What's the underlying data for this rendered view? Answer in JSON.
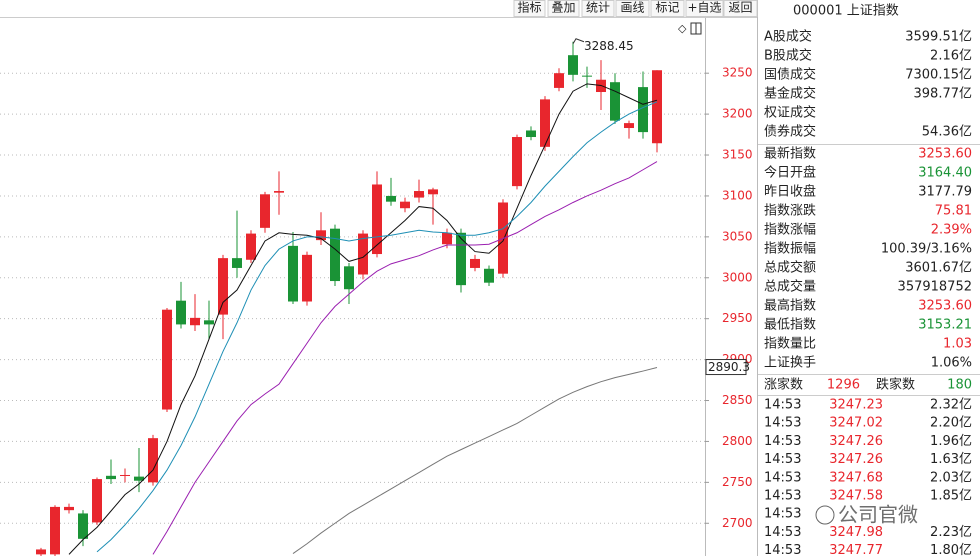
{
  "toolbar": [
    "指标",
    "叠加",
    "统计",
    "画线",
    "标记",
    "+自选",
    "返回"
  ],
  "chart_data": {
    "type": "candlestick",
    "up_color": "#e8262d",
    "down_color": "#1a9336",
    "open": [
      2662,
      2662,
      2716,
      2712,
      2701,
      2758,
      2758,
      2757,
      2750,
      2839,
      2972,
      2942,
      2948,
      2955,
      3024,
      3022,
      3061,
      3104,
      3039,
      2971,
      3046,
      3060,
      3014,
      3004,
      3029,
      3100,
      3085,
      3098,
      3102,
      3041,
      3055,
      3012,
      3011,
      3005,
      3112,
      3180,
      3160,
      3232,
      3272,
      3247,
      3227,
      3239,
      3183,
      3233,
      3164.4
    ],
    "high": [
      2670,
      2722,
      2724,
      2716,
      2756,
      2778,
      2767,
      2792,
      2808,
      2963,
      2995,
      2980,
      2972,
      3028,
      3082,
      3058,
      3105,
      3130,
      3056,
      3032,
      3080,
      3065,
      3018,
      3058,
      3130,
      3122,
      3098,
      3120,
      3110,
      3060,
      3060,
      3028,
      3015,
      3096,
      3175,
      3185,
      3222,
      3256,
      3288.45,
      3258,
      3266,
      3250,
      3192,
      3252,
      3253.6
    ],
    "low": [
      2660,
      2660,
      2712,
      2672,
      2698,
      2748,
      2750,
      2738,
      2746,
      2836,
      2938,
      2935,
      2925,
      2925,
      3000,
      3018,
      3055,
      3077,
      2968,
      2966,
      3040,
      2990,
      2968,
      2998,
      3025,
      3088,
      3080,
      3092,
      3065,
      3036,
      2982,
      3008,
      2990,
      3000,
      3108,
      3168,
      3155,
      3228,
      3240,
      3232,
      3205,
      3188,
      3170,
      3170,
      3153.21
    ],
    "close": [
      2668,
      2720,
      2720,
      2681,
      2754,
      2754,
      2759,
      2752,
      2804,
      2961,
      2943,
      2951,
      2943,
      3024,
      3012,
      3054,
      3102,
      3106,
      2971,
      3028,
      3058,
      2996,
      2986,
      3054,
      3114,
      3093,
      3093,
      3106,
      3108,
      3055,
      2991,
      3023,
      2994,
      3092,
      3172,
      3172,
      3218,
      3250,
      3248,
      3246,
      3242,
      3192,
      3189,
      3178,
      3253.6
    ],
    "lines": [
      {
        "color": "#111111",
        "values": [
          null,
          null,
          2662,
          2680,
          2695,
          2715,
          2735,
          2748,
          2765,
          2800,
          2845,
          2880,
          2925,
          2970,
          2985,
          3015,
          3045,
          3055,
          3053,
          3052,
          3048,
          3035,
          3020,
          3025,
          3040,
          3055,
          3070,
          3087,
          3085,
          3070,
          3048,
          3032,
          3030,
          3045,
          3085,
          3125,
          3162,
          3200,
          3228,
          3237,
          3235,
          3228,
          3220,
          3212,
          3217
        ]
      },
      {
        "color": "#1e8fb5",
        "values": [
          null,
          null,
          null,
          null,
          2665,
          2680,
          2698,
          2718,
          2740,
          2765,
          2795,
          2830,
          2870,
          2910,
          2945,
          2985,
          3015,
          3035,
          3045,
          3050,
          3050,
          3048,
          3045,
          3048,
          3050,
          3052,
          3055,
          3058,
          3056,
          3055,
          3052,
          3052,
          3055,
          3060,
          3075,
          3092,
          3112,
          3130,
          3148,
          3165,
          3178,
          3190,
          3200,
          3208,
          3215
        ]
      },
      {
        "color": "#9a1fb0",
        "values": [
          null,
          null,
          null,
          null,
          null,
          null,
          null,
          null,
          2662,
          2690,
          2720,
          2750,
          2775,
          2800,
          2825,
          2845,
          2858,
          2870,
          2895,
          2920,
          2945,
          2965,
          2980,
          2995,
          3008,
          3017,
          3022,
          3027,
          3034,
          3040,
          3040,
          3040,
          3041,
          3048,
          3055,
          3065,
          3075,
          3083,
          3092,
          3100,
          3107,
          3115,
          3122,
          3132,
          3142
        ]
      },
      {
        "color": "#777777",
        "values": [
          null,
          null,
          null,
          null,
          null,
          null,
          null,
          null,
          null,
          null,
          null,
          null,
          null,
          null,
          null,
          null,
          null,
          null,
          2663,
          2675,
          2688,
          2700,
          2712,
          2722,
          2732,
          2742,
          2752,
          2762,
          2772,
          2782,
          2790,
          2798,
          2806,
          2814,
          2822,
          2832,
          2842,
          2852,
          2860,
          2867,
          2873,
          2878,
          2882,
          2886,
          2890.3
        ]
      }
    ],
    "ylim": [
      2660,
      3315
    ],
    "yticks": [
      2700,
      2750,
      2800,
      2850,
      2900,
      2950,
      3000,
      3050,
      3100,
      3150,
      3200,
      3250
    ],
    "grid": true,
    "annotation": "3288.45",
    "axis_marker": 2890.3
  },
  "quote": {
    "title": "000001 上证指数",
    "rows": [
      {
        "label": "A股成交",
        "value": "3599.51亿",
        "color": "dark"
      },
      {
        "label": "B股成交",
        "value": "2.16亿",
        "color": "dark"
      },
      {
        "label": "国债成交",
        "value": "7300.15亿",
        "color": "dark"
      },
      {
        "label": "基金成交",
        "value": "398.77亿",
        "color": "dark"
      },
      {
        "label": "权证成交"
      },
      {
        "label": "债券成交",
        "value": "54.36亿",
        "color": "dark"
      }
    ],
    "index_rows": [
      {
        "label": "最新指数",
        "value": "3253.60",
        "color": "red"
      },
      {
        "label": "今日开盘",
        "value": "3164.40",
        "color": "green"
      },
      {
        "label": "昨日收盘",
        "value": "3177.79",
        "color": "dark"
      },
      {
        "label": "指数涨跌",
        "value": "75.81",
        "color": "red"
      },
      {
        "label": "指数涨幅",
        "value": "2.39%",
        "color": "red"
      },
      {
        "label": "指数振幅",
        "value": "100.39/3.16%",
        "color": "dark"
      },
      {
        "label": "总成交额",
        "value": "3601.67亿",
        "color": "dark"
      },
      {
        "label": "总成交量",
        "value": "357918752",
        "color": "dark"
      },
      {
        "label": "最高指数",
        "value": "3253.60",
        "color": "red"
      },
      {
        "label": "最低指数",
        "value": "3153.21",
        "color": "green"
      },
      {
        "label": "指数量比",
        "value": "1.03",
        "color": "red"
      },
      {
        "label": "上证换手",
        "value": "1.06%",
        "color": "dark"
      }
    ],
    "breadth": {
      "up_label": "涨家数",
      "up": 1296,
      "down_label": "跌家数",
      "down": 180
    },
    "ticks": [
      [
        "14:53",
        "3247.23",
        "2.32亿"
      ],
      [
        "14:53",
        "3247.02",
        "2.20亿"
      ],
      [
        "14:53",
        "3247.26",
        "1.96亿"
      ],
      [
        "14:53",
        "3247.26",
        "1.63亿"
      ],
      [
        "14:53",
        "3247.68",
        "2.03亿"
      ],
      [
        "14:53",
        "3247.58",
        "1.85亿"
      ],
      [
        "14:53"
      ],
      [
        "14:53",
        "3247.98",
        "2.23亿"
      ],
      [
        "14:53",
        "3247.77",
        "1.80亿"
      ]
    ]
  },
  "watermark": "公司官微"
}
